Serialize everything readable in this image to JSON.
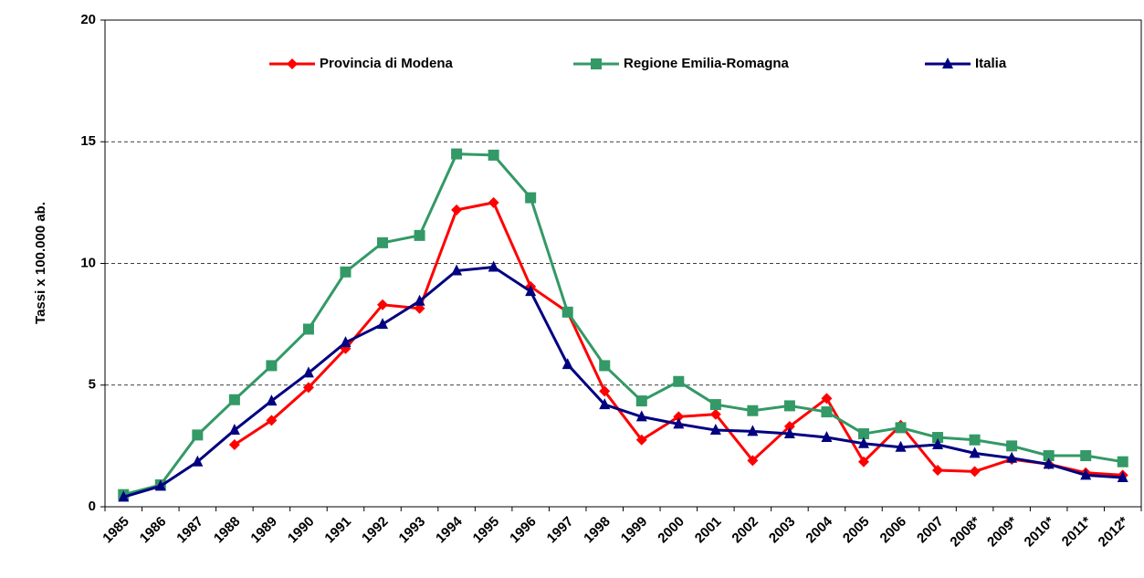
{
  "chart_data": {
    "type": "line",
    "y_label": "Tassi x 100.000 ab.",
    "categories": [
      "1985",
      "1986",
      "1987",
      "1988",
      "1989",
      "1990",
      "1991",
      "1992",
      "1993",
      "1994",
      "1995",
      "1996",
      "1997",
      "1998",
      "1999",
      "2000",
      "2001",
      "2002",
      "2003",
      "2004",
      "2005",
      "2006",
      "2007",
      "2008*",
      "2009*",
      "2010*",
      "2011*",
      "2012*"
    ],
    "series": [
      {
        "name": "Provincia di Modena",
        "color": "#ff0000",
        "marker": "diamond",
        "values": [
          null,
          null,
          null,
          2.55,
          3.55,
          4.9,
          6.5,
          8.3,
          8.15,
          12.2,
          12.5,
          9.05,
          8.0,
          4.75,
          2.75,
          3.7,
          3.8,
          1.9,
          3.3,
          4.45,
          1.85,
          3.35,
          1.5,
          1.45,
          1.95,
          1.75,
          1.4,
          1.3
        ]
      },
      {
        "name": "Regione Emilia-Romagna",
        "color": "#339966",
        "marker": "square",
        "values": [
          0.5,
          0.9,
          2.95,
          4.4,
          5.8,
          7.3,
          9.65,
          10.85,
          11.15,
          14.5,
          14.45,
          12.7,
          8.0,
          5.8,
          4.35,
          5.15,
          4.2,
          3.95,
          4.15,
          3.9,
          3.0,
          3.25,
          2.85,
          2.75,
          2.5,
          2.1,
          2.1,
          1.85
        ]
      },
      {
        "name": "Italia",
        "color": "#000080",
        "marker": "triangle",
        "values": [
          0.4,
          0.85,
          1.85,
          3.15,
          4.35,
          5.5,
          6.75,
          7.5,
          8.45,
          9.7,
          9.85,
          8.85,
          5.85,
          4.2,
          3.7,
          3.4,
          3.15,
          3.1,
          3.0,
          2.85,
          2.6,
          2.45,
          2.55,
          2.2,
          2.0,
          1.75,
          1.3,
          1.2
        ]
      }
    ],
    "ylim": [
      0,
      20
    ],
    "yticks": [
      0,
      5,
      10,
      15,
      20
    ],
    "grid": true,
    "legend": "top"
  }
}
